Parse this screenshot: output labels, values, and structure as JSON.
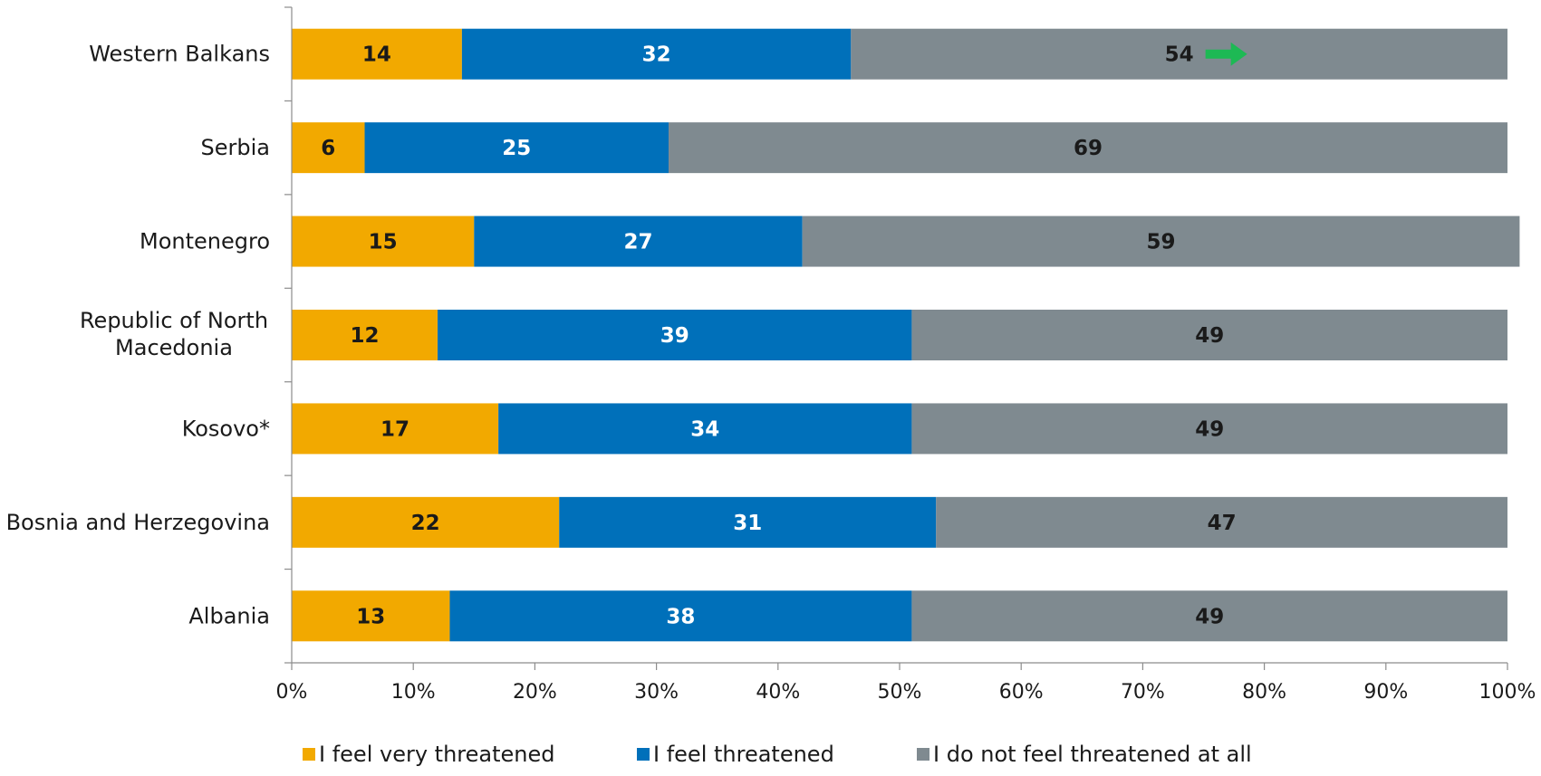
{
  "chart_data": {
    "type": "bar",
    "orientation": "horizontal",
    "stacked": true,
    "percent_scale": true,
    "categories": [
      "Western Balkans",
      "Serbia",
      "Montenegro",
      "Republic of North Macedonia",
      "Kosovo*",
      "Bosnia and Herzegovina",
      "Albania"
    ],
    "series": [
      {
        "name": "I feel very threatened",
        "color": "#F2A900",
        "label_color": "#1a1a1a",
        "values": [
          14,
          6,
          15,
          12,
          17,
          22,
          13
        ]
      },
      {
        "name": "I feel threatened",
        "color": "#0070BA",
        "label_color": "#ffffff",
        "values": [
          32,
          25,
          27,
          39,
          34,
          31,
          38
        ]
      },
      {
        "name": "I do not feel threatened at all",
        "color": "#7F8A90",
        "label_color": "#1a1a1a",
        "values": [
          54,
          69,
          59,
          49,
          49,
          47,
          49
        ]
      }
    ],
    "xlim": [
      0,
      100
    ],
    "x_ticks": [
      "0%",
      "10%",
      "20%",
      "30%",
      "40%",
      "50%",
      "60%",
      "70%",
      "80%",
      "90%",
      "100%"
    ],
    "legend_position": "bottom",
    "grid": false,
    "annotations": [
      {
        "type": "arrow",
        "icon": "right-arrow-icon",
        "direction": "right",
        "color": "#1DB954",
        "category": "Western Balkans",
        "series": "I do not feel threatened at all"
      }
    ],
    "title": "",
    "xlabel": "",
    "ylabel": ""
  }
}
